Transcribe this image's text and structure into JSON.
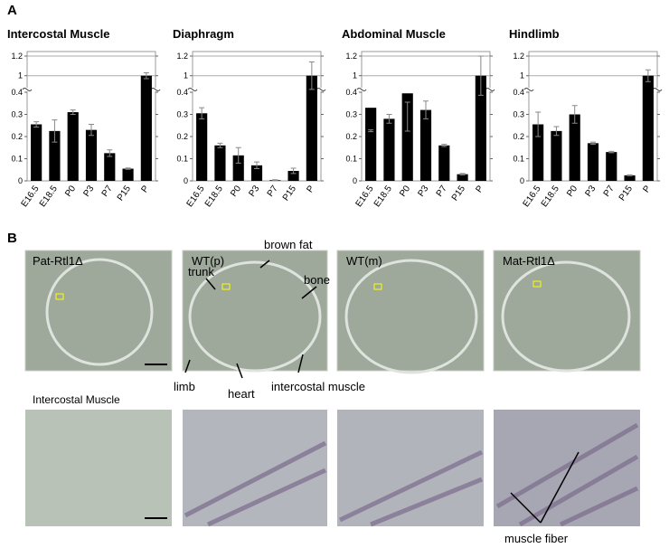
{
  "panel_a": {
    "label": "A"
  },
  "chart_data": [
    {
      "type": "bar",
      "title": "Intercostal Muscle",
      "categories": [
        "E16.5",
        "E18.5",
        "P0",
        "P3",
        "P7",
        "P15",
        "P"
      ],
      "values": [
        0.255,
        0.225,
        0.31,
        0.23,
        0.125,
        0.055,
        1.0
      ],
      "errors": [
        0.012,
        0.05,
        0.01,
        0.025,
        0.015,
        0.003,
        0.03
      ],
      "color": "#000000",
      "ylim": [
        0,
        1.2
      ],
      "y_break": [
        0.4,
        0.85
      ],
      "yticks": [
        0,
        0.1,
        0.2,
        0.3,
        0.4,
        1.0,
        1.2
      ],
      "grid": true
    },
    {
      "type": "bar",
      "title": "Diaphragm",
      "categories": [
        "E16.5",
        "E18.5",
        "P0",
        "P3",
        "P7",
        "P15",
        "P"
      ],
      "values": [
        0.305,
        0.16,
        0.115,
        0.07,
        0.003,
        0.045,
        1.0
      ],
      "errors": [
        0.025,
        0.01,
        0.035,
        0.015,
        0.002,
        0.012,
        0.14
      ],
      "color": "#000000",
      "ylim": [
        0,
        1.2
      ],
      "y_break": [
        0.4,
        0.85
      ],
      "yticks": [
        0,
        0.1,
        0.2,
        0.3,
        0.4,
        1.0,
        1.2
      ],
      "grid": true
    },
    {
      "type": "bar",
      "title": "Abdominal Muscle",
      "categories": [
        "E16.5",
        "E18.5",
        "P0",
        "P3",
        "P7",
        "P15",
        "P"
      ],
      "values": [
        0.33,
        0.28,
        0.395,
        0.32,
        0.16,
        0.03,
        1.0
      ],
      "errors": [
        0.1,
        0.02,
        0.04,
        0.04,
        0.005,
        0.003,
        0.2
      ],
      "color": "#000000",
      "ylim": [
        0,
        1.2
      ],
      "y_break": [
        0.4,
        0.85
      ],
      "yticks": [
        0,
        0.1,
        0.2,
        0.3,
        0.4,
        1.0,
        1.2
      ],
      "grid": true
    },
    {
      "type": "bar",
      "title": "Hindlimb",
      "categories": [
        "E16.5",
        "E18.5",
        "P0",
        "P3",
        "P7",
        "P15",
        "P"
      ],
      "values": [
        0.255,
        0.225,
        0.3,
        0.17,
        0.13,
        0.025,
        1.0
      ],
      "errors": [
        0.055,
        0.02,
        0.04,
        0.005,
        0.003,
        0.002,
        0.06
      ],
      "color": "#000000",
      "ylim": [
        0,
        1.2
      ],
      "y_break": [
        0.4,
        0.85
      ],
      "yticks": [
        0,
        0.1,
        0.2,
        0.3,
        0.4,
        1.0,
        1.2
      ],
      "grid": true
    }
  ],
  "panel_b": {
    "label": "B",
    "columns": [
      "Pat-Rtl1Δ",
      "WT(p)",
      "WT(m)",
      "Mat-Rtl1Δ"
    ],
    "annotations": {
      "brown_fat": "brown fat",
      "trunk": "trunk",
      "bone": "bone",
      "limb": "limb",
      "heart": "heart",
      "intercostal_muscle": "intercostal muscle",
      "muscle_fiber": "muscle fiber"
    },
    "row_label": "Intercostal Muscle"
  }
}
